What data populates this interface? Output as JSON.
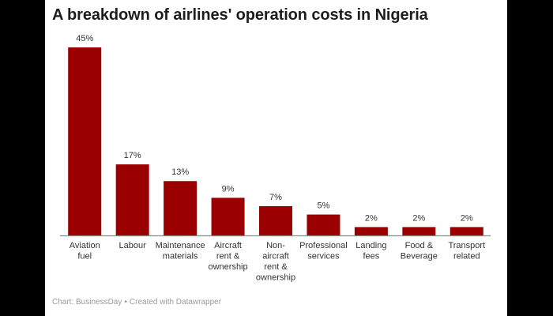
{
  "title": "A breakdown of airlines' operation costs in Nigeria",
  "footer": {
    "source": "Chart: BusinessDay",
    "separator": "•",
    "credit": "Created with Datawrapper"
  },
  "colors": {
    "bar": "#9b0000",
    "axis": "#888888",
    "label": "#333333"
  },
  "chart_data": {
    "type": "bar",
    "title": "A breakdown of airlines' operation costs in Nigeria",
    "xlabel": "",
    "ylabel": "",
    "unit": "%",
    "ylim": [
      0,
      45
    ],
    "grid": false,
    "categories": [
      [
        "Aviation",
        "fuel"
      ],
      [
        "Labour"
      ],
      [
        "Maintenance",
        "materials"
      ],
      [
        "Aircraft",
        "rent &",
        "ownership"
      ],
      [
        "Non-",
        "aircraft",
        "rent &",
        "ownership"
      ],
      [
        "Professional",
        "services"
      ],
      [
        "Landing",
        "fees"
      ],
      [
        "Food &",
        "Beverage"
      ],
      [
        "Transport",
        "related"
      ]
    ],
    "values": [
      45,
      17,
      13,
      9,
      7,
      5,
      2,
      2,
      2
    ],
    "value_labels": [
      "45%",
      "17%",
      "13%",
      "9%",
      "7%",
      "5%",
      "2%",
      "2%",
      "2%"
    ]
  }
}
